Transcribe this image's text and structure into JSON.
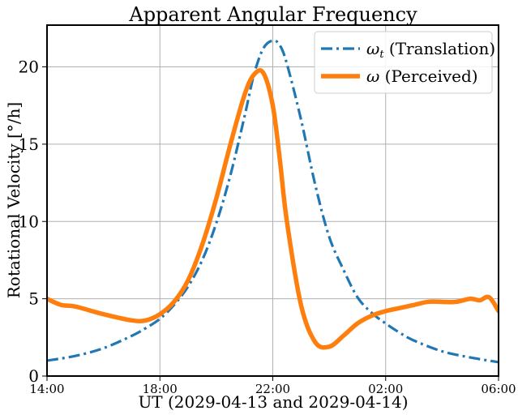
{
  "chart_data": {
    "type": "line",
    "title": "Apparent Angular Frequency",
    "xlabel": "UT (2029-04-13 and 2029-04-14)",
    "ylabel": "Rotational Velocity [°/h]",
    "x_ticks": [
      "14:00",
      "18:00",
      "22:00",
      "02:00",
      "06:00"
    ],
    "y_ticks": [
      0,
      5,
      10,
      15,
      20
    ],
    "xlim": [
      "2029-04-13 14:00",
      "2029-04-14 06:00"
    ],
    "ylim": [
      0,
      22.7
    ],
    "grid": true,
    "legend_position": "top-right",
    "series": [
      {
        "name_symbol": "ω",
        "name_subscript": "t",
        "name_text": " (Translation)",
        "color": "#1f77b4",
        "style": "dashdot",
        "x": [
          "2029-04-13 14:00",
          "2029-04-13 15:00",
          "2029-04-13 16:00",
          "2029-04-13 17:00",
          "2029-04-13 17:30",
          "2029-04-13 18:00",
          "2029-04-13 18:30",
          "2029-04-13 19:00",
          "2029-04-13 19:30",
          "2029-04-13 20:00",
          "2029-04-13 20:30",
          "2029-04-13 21:00",
          "2029-04-13 21:20",
          "2029-04-13 21:40",
          "2029-04-13 22:00",
          "2029-04-13 22:15",
          "2029-04-13 22:30",
          "2029-04-13 23:00",
          "2029-04-13 23:30",
          "2029-04-14 00:00",
          "2029-04-14 00:30",
          "2029-04-14 01:00",
          "2029-04-14 01:30",
          "2029-04-14 02:00",
          "2029-04-14 02:30",
          "2029-04-14 03:00",
          "2029-04-14 04:00",
          "2029-04-14 05:00",
          "2029-04-14 06:00"
        ],
        "values": [
          1.0,
          1.3,
          1.8,
          2.6,
          3.1,
          3.7,
          4.6,
          5.8,
          7.5,
          9.9,
          13.0,
          16.8,
          19.5,
          21.2,
          21.7,
          21.4,
          20.2,
          16.6,
          12.4,
          9.0,
          6.9,
          5.1,
          4.1,
          3.4,
          2.8,
          2.3,
          1.6,
          1.2,
          0.9
        ]
      },
      {
        "name_symbol": "ω",
        "name_subscript": "",
        "name_text": " (Perceived)",
        "color": "#ff7f0e",
        "style": "solid",
        "x": [
          "2029-04-13 14:00",
          "2029-04-13 14:30",
          "2029-04-13 15:00",
          "2029-04-13 16:00",
          "2029-04-13 17:00",
          "2029-04-13 17:30",
          "2029-04-13 18:00",
          "2029-04-13 18:30",
          "2029-04-13 19:00",
          "2029-04-13 19:30",
          "2029-04-13 20:00",
          "2029-04-13 20:30",
          "2029-04-13 21:00",
          "2029-04-13 21:20",
          "2029-04-13 21:40",
          "2029-04-13 22:00",
          "2029-04-13 22:15",
          "2029-04-13 22:30",
          "2029-04-13 23:00",
          "2029-04-13 23:30",
          "2029-04-14 00:00",
          "2029-04-14 00:30",
          "2029-04-14 01:00",
          "2029-04-14 01:30",
          "2029-04-14 02:00",
          "2029-04-14 02:30",
          "2029-04-14 03:00",
          "2029-04-14 03:30",
          "2029-04-14 04:00",
          "2029-04-14 04:30",
          "2029-04-14 05:00",
          "2029-04-14 05:20",
          "2029-04-14 05:40",
          "2029-04-14 06:00"
        ],
        "values": [
          5.0,
          4.6,
          4.5,
          4.0,
          3.6,
          3.6,
          4.0,
          4.8,
          6.2,
          8.5,
          11.5,
          15.0,
          18.2,
          19.5,
          19.6,
          17.5,
          14.0,
          10.0,
          4.6,
          2.2,
          1.9,
          2.6,
          3.4,
          3.9,
          4.2,
          4.4,
          4.6,
          4.8,
          4.8,
          4.8,
          5.0,
          4.9,
          5.1,
          4.2
        ]
      }
    ]
  }
}
